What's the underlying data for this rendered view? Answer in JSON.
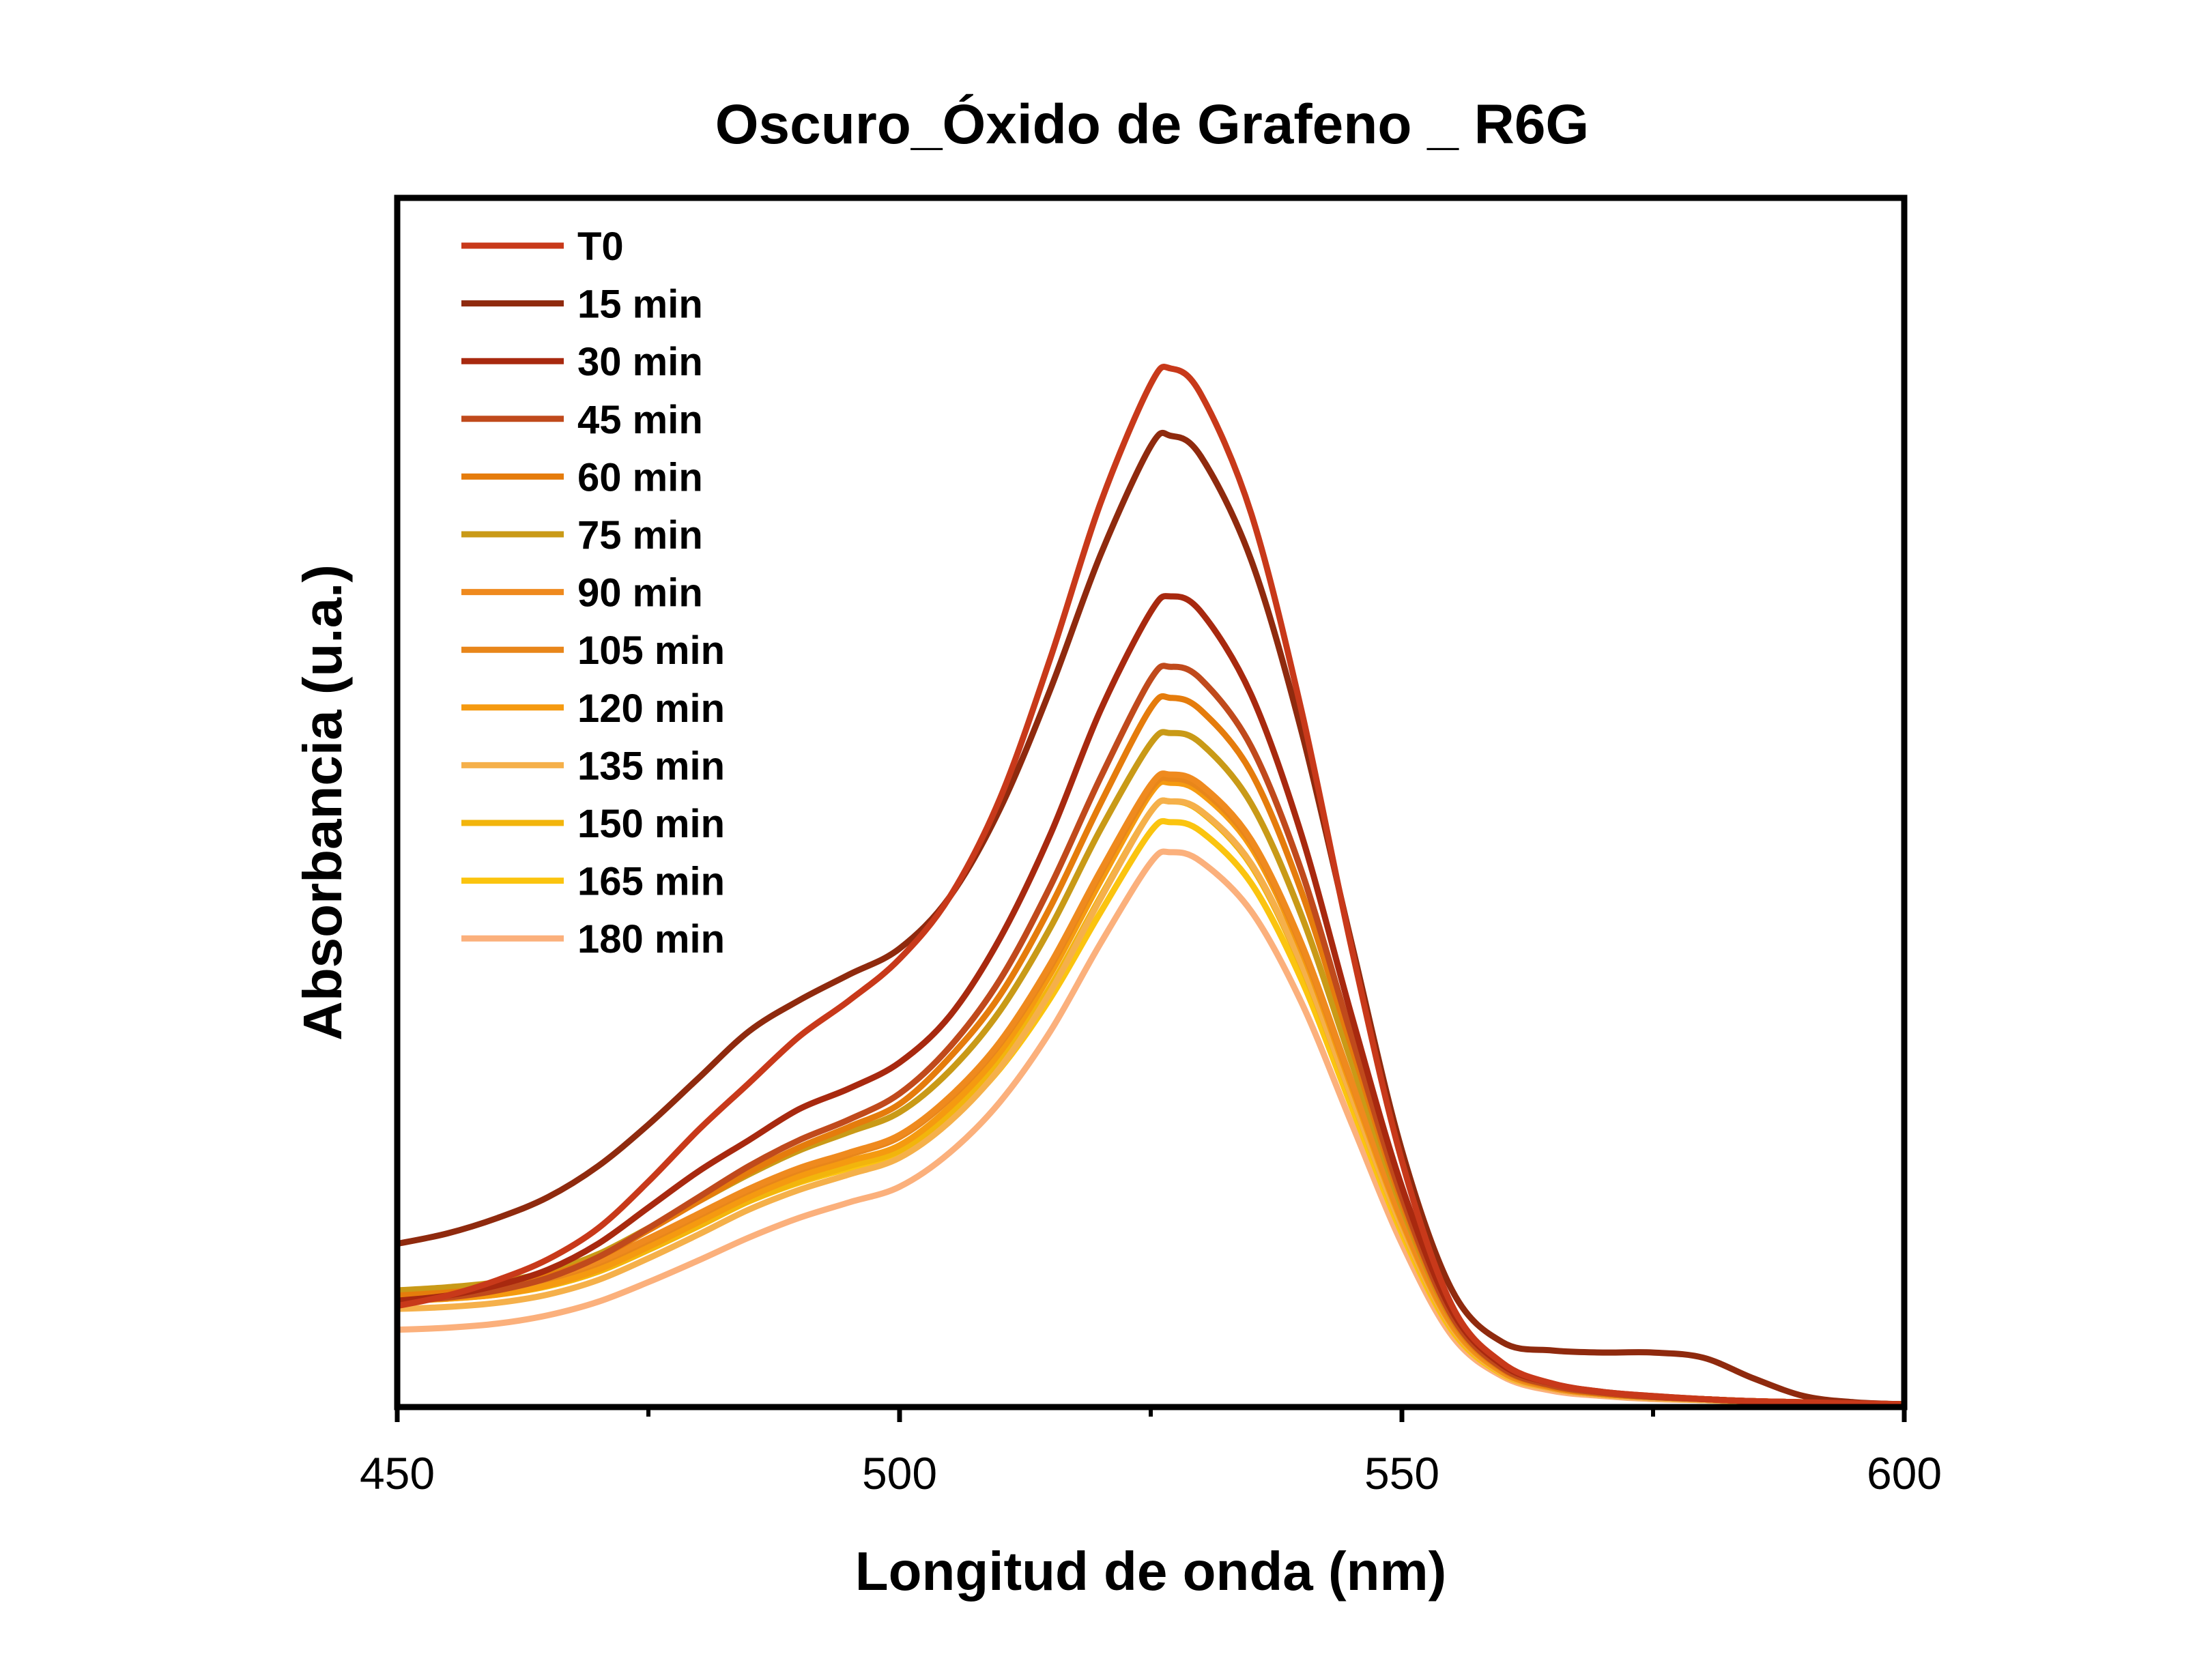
{
  "chart_data": {
    "type": "line",
    "title": "Oscuro_Óxido de Grafeno _ R6G",
    "xlabel": "Longitud de onda (nm)",
    "ylabel": "Absorbancia (u.a.)",
    "xlim": [
      450,
      600
    ],
    "ylim": [
      0,
      1
    ],
    "x_ticks": [
      "450",
      "500",
      "550",
      "600"
    ],
    "y_ticks_visible": false,
    "grid": false,
    "legend": "top-left",
    "x": [
      450,
      455,
      460,
      465,
      470,
      475,
      480,
      485,
      490,
      495,
      500,
      505,
      510,
      515,
      520,
      525,
      527,
      530,
      535,
      540,
      545,
      550,
      555,
      560,
      565,
      570,
      575,
      580,
      585,
      590,
      595,
      600
    ],
    "series": [
      {
        "name": "T0",
        "color": "#c8391a",
        "values": [
          0.095,
          0.105,
          0.12,
          0.14,
          0.17,
          0.215,
          0.265,
          0.31,
          0.355,
          0.39,
          0.43,
          0.49,
          0.585,
          0.72,
          0.87,
          0.985,
          1.0,
          0.975,
          0.86,
          0.67,
          0.44,
          0.235,
          0.095,
          0.04,
          0.02,
          0.012,
          0.008,
          0.005,
          0.003,
          0.002,
          0.001,
          0.0
        ]
      },
      {
        "name": "15 min",
        "color": "#8f2a0e",
        "values": [
          0.155,
          0.165,
          0.18,
          0.2,
          0.23,
          0.27,
          0.315,
          0.36,
          0.39,
          0.415,
          0.44,
          0.49,
          0.575,
          0.69,
          0.82,
          0.925,
          0.935,
          0.915,
          0.815,
          0.65,
          0.445,
          0.245,
          0.11,
          0.06,
          0.052,
          0.05,
          0.05,
          0.045,
          0.025,
          0.008,
          0.002,
          0.0
        ]
      },
      {
        "name": "30 min",
        "color": "#a8290f",
        "values": [
          0.1,
          0.105,
          0.115,
          0.13,
          0.155,
          0.19,
          0.225,
          0.255,
          0.285,
          0.305,
          0.33,
          0.375,
          0.45,
          0.55,
          0.67,
          0.765,
          0.78,
          0.765,
          0.685,
          0.55,
          0.375,
          0.21,
          0.09,
          0.038,
          0.02,
          0.012,
          0.008,
          0.005,
          0.003,
          0.002,
          0.001,
          0.0
        ]
      },
      {
        "name": "45 min",
        "color": "#c04a1c",
        "values": [
          0.1,
          0.103,
          0.11,
          0.122,
          0.142,
          0.17,
          0.2,
          0.23,
          0.255,
          0.275,
          0.3,
          0.345,
          0.41,
          0.5,
          0.605,
          0.7,
          0.712,
          0.7,
          0.635,
          0.515,
          0.355,
          0.2,
          0.085,
          0.035,
          0.018,
          0.011,
          0.007,
          0.005,
          0.003,
          0.002,
          0.001,
          0.0
        ]
      },
      {
        "name": "60 min",
        "color": "#e57c0c",
        "values": [
          0.105,
          0.108,
          0.113,
          0.124,
          0.142,
          0.168,
          0.196,
          0.224,
          0.248,
          0.268,
          0.29,
          0.335,
          0.395,
          0.48,
          0.58,
          0.672,
          0.682,
          0.67,
          0.61,
          0.495,
          0.345,
          0.195,
          0.083,
          0.034,
          0.017,
          0.01,
          0.007,
          0.005,
          0.003,
          0.002,
          0.001,
          0.0
        ]
      },
      {
        "name": "75 min",
        "color": "#c99a17",
        "values": [
          0.11,
          0.113,
          0.118,
          0.128,
          0.145,
          0.17,
          0.196,
          0.222,
          0.245,
          0.263,
          0.282,
          0.322,
          0.38,
          0.46,
          0.555,
          0.638,
          0.648,
          0.638,
          0.58,
          0.472,
          0.33,
          0.19,
          0.082,
          0.034,
          0.017,
          0.01,
          0.007,
          0.005,
          0.003,
          0.002,
          0.001,
          0.0
        ]
      },
      {
        "name": "90 min",
        "color": "#ef8a1e",
        "values": [
          0.108,
          0.11,
          0.114,
          0.123,
          0.138,
          0.16,
          0.184,
          0.208,
          0.228,
          0.243,
          0.26,
          0.297,
          0.35,
          0.425,
          0.515,
          0.598,
          0.608,
          0.598,
          0.545,
          0.445,
          0.312,
          0.18,
          0.078,
          0.032,
          0.016,
          0.01,
          0.007,
          0.005,
          0.003,
          0.002,
          0.001,
          0.0
        ]
      },
      {
        "name": "105 min",
        "color": "#e8861a",
        "values": [
          0.106,
          0.108,
          0.112,
          0.121,
          0.136,
          0.158,
          0.182,
          0.206,
          0.226,
          0.241,
          0.258,
          0.295,
          0.348,
          0.422,
          0.512,
          0.594,
          0.604,
          0.594,
          0.542,
          0.442,
          0.31,
          0.179,
          0.078,
          0.032,
          0.016,
          0.01,
          0.007,
          0.005,
          0.003,
          0.002,
          0.001,
          0.0
        ]
      },
      {
        "name": "120 min",
        "color": "#f59a10",
        "values": [
          0.1,
          0.102,
          0.106,
          0.115,
          0.13,
          0.152,
          0.176,
          0.2,
          0.22,
          0.235,
          0.25,
          0.287,
          0.34,
          0.415,
          0.505,
          0.59,
          0.6,
          0.59,
          0.538,
          0.438,
          0.306,
          0.176,
          0.076,
          0.031,
          0.016,
          0.01,
          0.007,
          0.005,
          0.003,
          0.002,
          0.001,
          0.0
        ]
      },
      {
        "name": "135 min",
        "color": "#f5b04a",
        "values": [
          0.092,
          0.094,
          0.098,
          0.106,
          0.12,
          0.141,
          0.164,
          0.188,
          0.207,
          0.222,
          0.238,
          0.273,
          0.325,
          0.398,
          0.488,
          0.572,
          0.582,
          0.573,
          0.522,
          0.425,
          0.297,
          0.171,
          0.074,
          0.03,
          0.015,
          0.009,
          0.006,
          0.004,
          0.003,
          0.002,
          0.001,
          0.0
        ]
      },
      {
        "name": "150 min",
        "color": "#f2b50c",
        "values": [
          0.1,
          0.102,
          0.106,
          0.114,
          0.128,
          0.149,
          0.172,
          0.196,
          0.215,
          0.23,
          0.245,
          0.28,
          0.332,
          0.403,
          0.49,
          0.572,
          0.582,
          0.572,
          0.52,
          0.423,
          0.296,
          0.17,
          0.073,
          0.03,
          0.015,
          0.009,
          0.006,
          0.004,
          0.003,
          0.002,
          0.001,
          0.0
        ]
      },
      {
        "name": "165 min",
        "color": "#fbc40f",
        "values": [
          0.11,
          0.111,
          0.114,
          0.121,
          0.134,
          0.153,
          0.174,
          0.196,
          0.214,
          0.228,
          0.242,
          0.275,
          0.324,
          0.392,
          0.475,
          0.553,
          0.562,
          0.553,
          0.503,
          0.41,
          0.287,
          0.165,
          0.071,
          0.029,
          0.015,
          0.009,
          0.006,
          0.004,
          0.003,
          0.002,
          0.001,
          0.0
        ]
      },
      {
        "name": "180 min",
        "color": "#fbb07c",
        "values": [
          0.072,
          0.074,
          0.078,
          0.086,
          0.099,
          0.118,
          0.139,
          0.161,
          0.18,
          0.195,
          0.21,
          0.243,
          0.292,
          0.36,
          0.445,
          0.523,
          0.533,
          0.524,
          0.476,
          0.388,
          0.271,
          0.155,
          0.066,
          0.027,
          0.013,
          0.008,
          0.005,
          0.004,
          0.002,
          0.001,
          0.0,
          0.0
        ]
      }
    ]
  }
}
